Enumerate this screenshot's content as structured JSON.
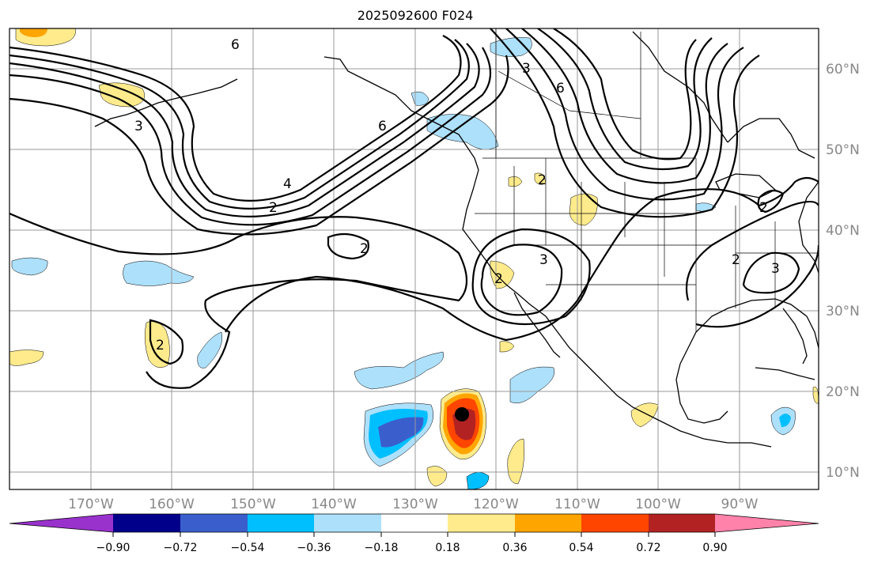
{
  "title": "2025092600 F024",
  "lat_labels": [
    "60°N",
    "50°N",
    "40°N",
    "30°N",
    "20°N",
    "10°N"
  ],
  "lon_labels": [
    "170°W",
    "160°W",
    "150°W",
    "140°W",
    "130°W",
    "120°W",
    "110°W",
    "100°W",
    "90°W"
  ],
  "colorbar": {
    "ticks": [
      "−0.90",
      "−0.72",
      "−0.54",
      "−0.36",
      "−0.18",
      "0.18",
      "0.36",
      "0.54",
      "0.72",
      "0.90"
    ],
    "colors": {
      "under": "#9932cc",
      "c1": "#00008b",
      "c2": "#3a5fcd",
      "c3": "#00bfff",
      "c4": "#ade0fb",
      "c5": "#ffffff",
      "c6": "#ffeb8c",
      "c7": "#ffa500",
      "c8": "#ff4500",
      "c9": "#b22222",
      "over": "#ff82ab"
    }
  },
  "contour_labels": [
    "6",
    "3",
    "3",
    "6",
    "4",
    "2",
    "2",
    "2",
    "3",
    "3",
    "2",
    "2",
    "6",
    "2",
    "2"
  ],
  "colors": {
    "grid": "#999999",
    "coast": "#000000",
    "contour": "#000000"
  }
}
